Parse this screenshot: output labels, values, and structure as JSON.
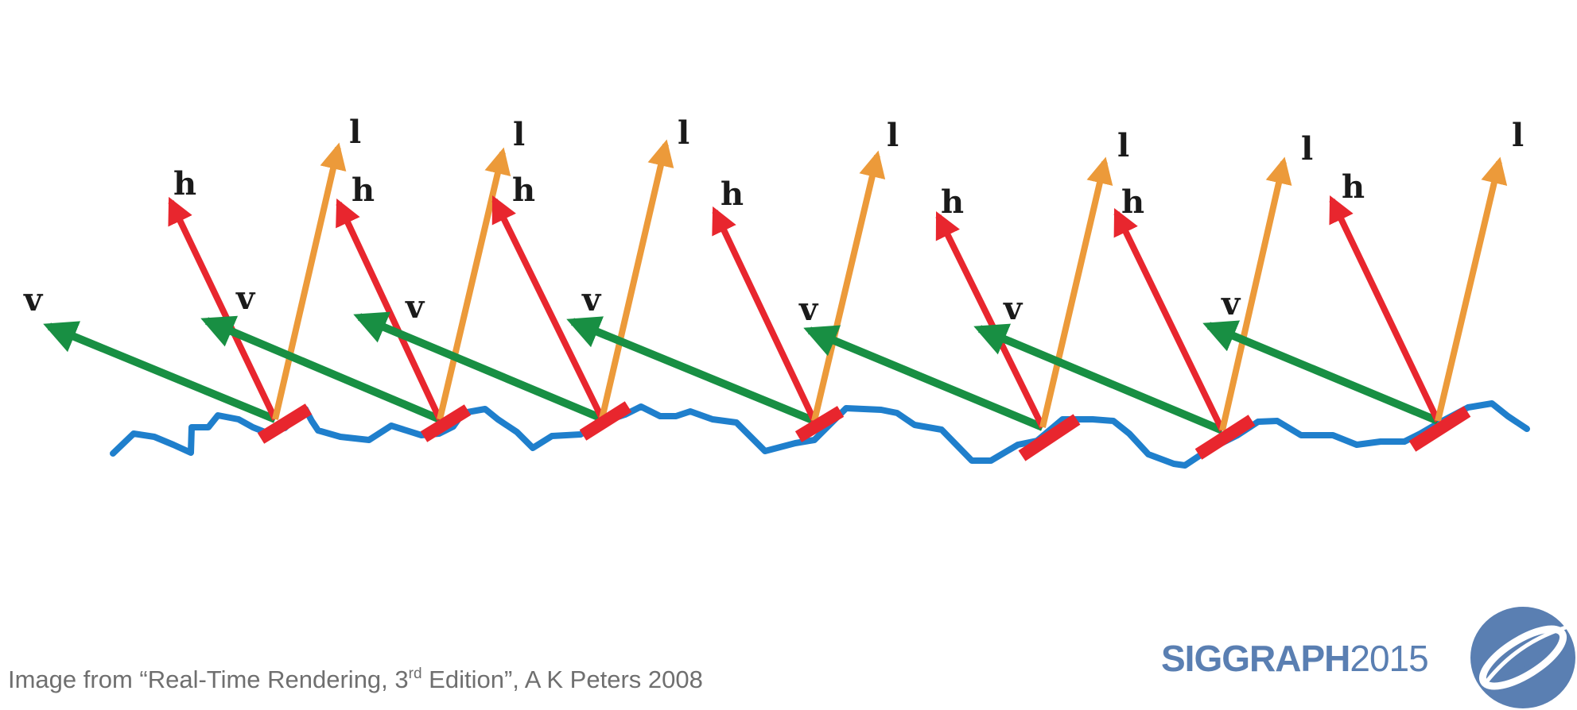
{
  "diagram": {
    "vector_labels": {
      "view": "v",
      "half": "h",
      "light": "l"
    },
    "colors": {
      "surface": "#1f7fcc",
      "microfacet": "#e8262e",
      "view_vector": "#188f43",
      "half_vector": "#e8262e",
      "light_vector": "#ec9a3a"
    },
    "microfacet_count": 7
  },
  "caption": {
    "prefix": "Image from “Real-Time Rendering, 3",
    "superscript": "rd",
    "suffix": " Edition”, A K Peters 2008"
  },
  "logo": {
    "name_part": "SIGGRAPH",
    "year_part": "2015",
    "colors": {
      "brand": "#5a7fb2"
    }
  }
}
